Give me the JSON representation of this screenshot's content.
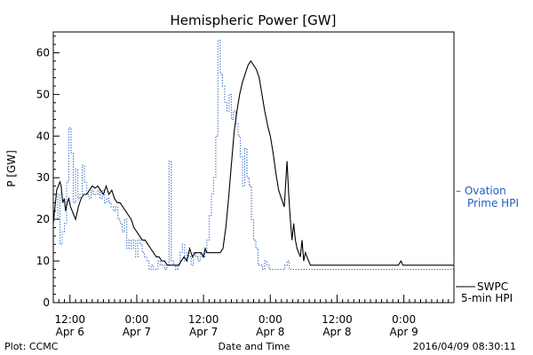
{
  "chart_data": {
    "type": "line",
    "title": "Hemispheric Power [GW]",
    "xlabel": "Date and Time",
    "ylabel": "P [GW]",
    "ylim": [
      0,
      65
    ],
    "yticks": [
      0,
      10,
      20,
      30,
      40,
      50,
      60
    ],
    "xlim_hours": [
      0,
      72
    ],
    "xticks": [
      {
        "hour": 3,
        "time": "12:00",
        "date": "Apr 6"
      },
      {
        "hour": 15,
        "time": "0:00",
        "date": "Apr 7"
      },
      {
        "hour": 27,
        "time": "12:00",
        "date": "Apr 7"
      },
      {
        "hour": 39,
        "time": "0:00",
        "date": "Apr 8"
      },
      {
        "hour": 51,
        "time": "12:00",
        "date": "Apr 8"
      },
      {
        "hour": 63,
        "time": "0:00",
        "date": "Apr 9"
      }
    ],
    "series": [
      {
        "name": "SWPC 5-min HPI",
        "legend_lines": [
          "SWPC",
          "5-min HPI"
        ],
        "color": "#000000",
        "style": "solid",
        "x": [
          0,
          0.3,
          0.6,
          0.9,
          1.2,
          1.4,
          1.7,
          2.0,
          2.2,
          2.5,
          2.8,
          3.1,
          3.4,
          3.7,
          4.0,
          4.5,
          5.0,
          5.5,
          6.0,
          6.5,
          7.0,
          7.5,
          8.0,
          8.5,
          9.0,
          9.5,
          10.0,
          10.5,
          11.0,
          11.5,
          12.0,
          12.5,
          13.0,
          13.5,
          14.0,
          14.5,
          15.0,
          15.5,
          16.0,
          16.5,
          17.0,
          17.5,
          18.0,
          18.5,
          19.0,
          19.5,
          20.0,
          20.5,
          21.0,
          21.5,
          22.0,
          22.5,
          23.0,
          23.5,
          24.0,
          24.5,
          25.0,
          25.5,
          26.0,
          26.5,
          27.0,
          27.3,
          27.6,
          27.9,
          28.2,
          28.5,
          28.8,
          29.1,
          29.4,
          29.7,
          30.0,
          30.5,
          31.0,
          31.5,
          32.0,
          32.5,
          33.0,
          33.5,
          34.0,
          34.5,
          35.0,
          35.5,
          36.0,
          36.5,
          37.0,
          37.5,
          38.0,
          38.3,
          38.6,
          39.0,
          39.5,
          40.0,
          40.5,
          41.0,
          41.5,
          42.0,
          42.3,
          42.6,
          42.9,
          43.2,
          43.5,
          43.8,
          44.1,
          44.4,
          44.7,
          45.0,
          45.3,
          45.6,
          45.9,
          46.2,
          46.5,
          46.8,
          47.1,
          47.4,
          47.7,
          48.0,
          48.5,
          49.0,
          49.5,
          50.0,
          51.0,
          52.0,
          53.0,
          54.0,
          55.0,
          56.0,
          57.0,
          58.0,
          59.0,
          60.0,
          61.0,
          62.0,
          62.5,
          62.8,
          63.1,
          63.5,
          64.0,
          65.0,
          66.0,
          67.0,
          68.0,
          69.0,
          70.0,
          71.0,
          72.0
        ],
        "y": [
          19,
          23,
          27,
          28,
          29,
          28,
          24,
          25,
          22,
          24,
          25,
          23,
          22,
          21,
          20,
          23,
          25,
          26,
          26,
          27,
          28,
          27.5,
          28,
          27,
          26,
          28,
          26,
          27,
          25,
          24,
          24,
          23,
          22,
          21,
          20,
          18,
          17,
          16,
          15,
          15,
          14,
          13,
          12,
          11,
          11,
          10,
          10,
          9,
          9,
          9,
          9,
          9,
          10,
          11,
          10,
          13,
          11,
          12,
          12,
          12,
          11,
          13,
          12,
          12,
          12,
          12,
          12,
          12,
          12,
          12,
          12,
          13,
          18,
          25,
          33,
          41,
          46,
          50,
          53,
          55,
          57,
          58,
          57,
          56,
          54,
          50,
          46,
          44,
          42,
          40,
          36,
          31,
          27,
          25,
          23,
          34,
          26,
          20,
          15,
          19,
          15,
          13,
          12,
          11,
          15,
          10,
          12,
          11,
          10,
          9,
          9,
          9,
          9,
          9,
          9,
          9,
          9,
          9,
          9,
          9,
          9,
          9,
          9,
          9,
          9,
          9,
          9,
          9,
          9,
          9,
          9,
          9,
          10,
          9,
          9,
          9,
          9,
          9,
          9,
          9,
          9,
          9,
          9,
          9,
          9
        ]
      },
      {
        "name": "Ovation Prime HPI",
        "legend_lines": [
          "– Ovation",
          "Prime HPI"
        ],
        "color": "#1f5fbf",
        "style": "dotted-step",
        "x": [
          0,
          0.8,
          1.2,
          1.6,
          2.0,
          2.4,
          2.8,
          3.2,
          3.6,
          4.0,
          4.4,
          4.8,
          5.2,
          5.6,
          6.0,
          6.4,
          6.8,
          7.2,
          7.6,
          8.0,
          8.4,
          8.8,
          9.2,
          9.6,
          10.0,
          10.4,
          10.8,
          11.2,
          11.6,
          12.0,
          12.4,
          12.8,
          13.2,
          13.6,
          14.0,
          14.4,
          14.8,
          15.2,
          15.6,
          16.0,
          16.4,
          16.8,
          17.2,
          17.6,
          18.0,
          18.4,
          18.8,
          19.2,
          19.6,
          20.0,
          20.4,
          20.8,
          21.2,
          21.6,
          22.0,
          22.4,
          22.8,
          23.2,
          23.6,
          24.0,
          24.4,
          24.8,
          25.2,
          25.6,
          26.0,
          26.4,
          26.8,
          27.2,
          27.6,
          28.0,
          28.4,
          28.8,
          29.2,
          29.6,
          30.0,
          30.4,
          30.8,
          31.2,
          31.6,
          32.0,
          32.4,
          32.8,
          33.2,
          33.6,
          34.0,
          34.4,
          34.8,
          35.2,
          35.6,
          36.0,
          36.4,
          36.8,
          37.2,
          37.6,
          38.0,
          38.4,
          38.8,
          39.2,
          39.6,
          40.0,
          40.4,
          40.8,
          41.2,
          41.6,
          42.0,
          42.4,
          42.8,
          43.2,
          43.6,
          44.0,
          44.4,
          44.8,
          45.2,
          45.6,
          46.0,
          46.4,
          46.8,
          47.2,
          48.0,
          50.0,
          52.0,
          54.0,
          56.0,
          58.0,
          60.0,
          62.0,
          64.0,
          66.0,
          68.0,
          70.0,
          71.2,
          71.6,
          72.0
        ],
        "y": [
          20,
          26,
          14,
          17,
          19,
          29,
          42,
          36,
          24,
          32,
          25,
          26,
          33,
          29,
          26,
          25,
          27,
          26,
          26,
          27,
          25,
          27,
          24,
          25,
          24,
          23,
          22,
          23,
          20,
          19,
          17,
          20,
          13,
          15,
          13,
          15,
          11,
          15,
          14,
          12,
          11,
          10,
          8,
          9,
          8,
          8,
          10,
          9,
          9,
          8,
          9,
          34,
          10,
          9,
          8,
          9,
          12,
          14,
          10,
          12,
          11,
          9,
          12,
          11,
          10,
          12,
          11,
          12,
          15,
          21,
          26,
          30,
          40,
          63,
          55,
          52,
          48,
          46,
          50,
          44,
          46,
          43,
          40,
          35,
          28,
          37,
          30,
          28,
          20,
          15,
          13,
          9,
          9,
          8,
          10,
          9,
          8,
          8,
          8,
          8,
          8,
          8,
          8,
          9,
          10,
          8,
          8,
          8,
          8,
          8,
          8,
          8,
          8,
          8,
          8,
          8,
          8,
          8,
          8,
          8,
          8,
          8,
          8,
          8,
          8,
          8,
          8,
          8,
          8,
          8,
          8,
          8,
          11
        ]
      }
    ],
    "footer_left": "Plot: CCMC",
    "footer_right": "2016/04/09 08:30:11"
  }
}
